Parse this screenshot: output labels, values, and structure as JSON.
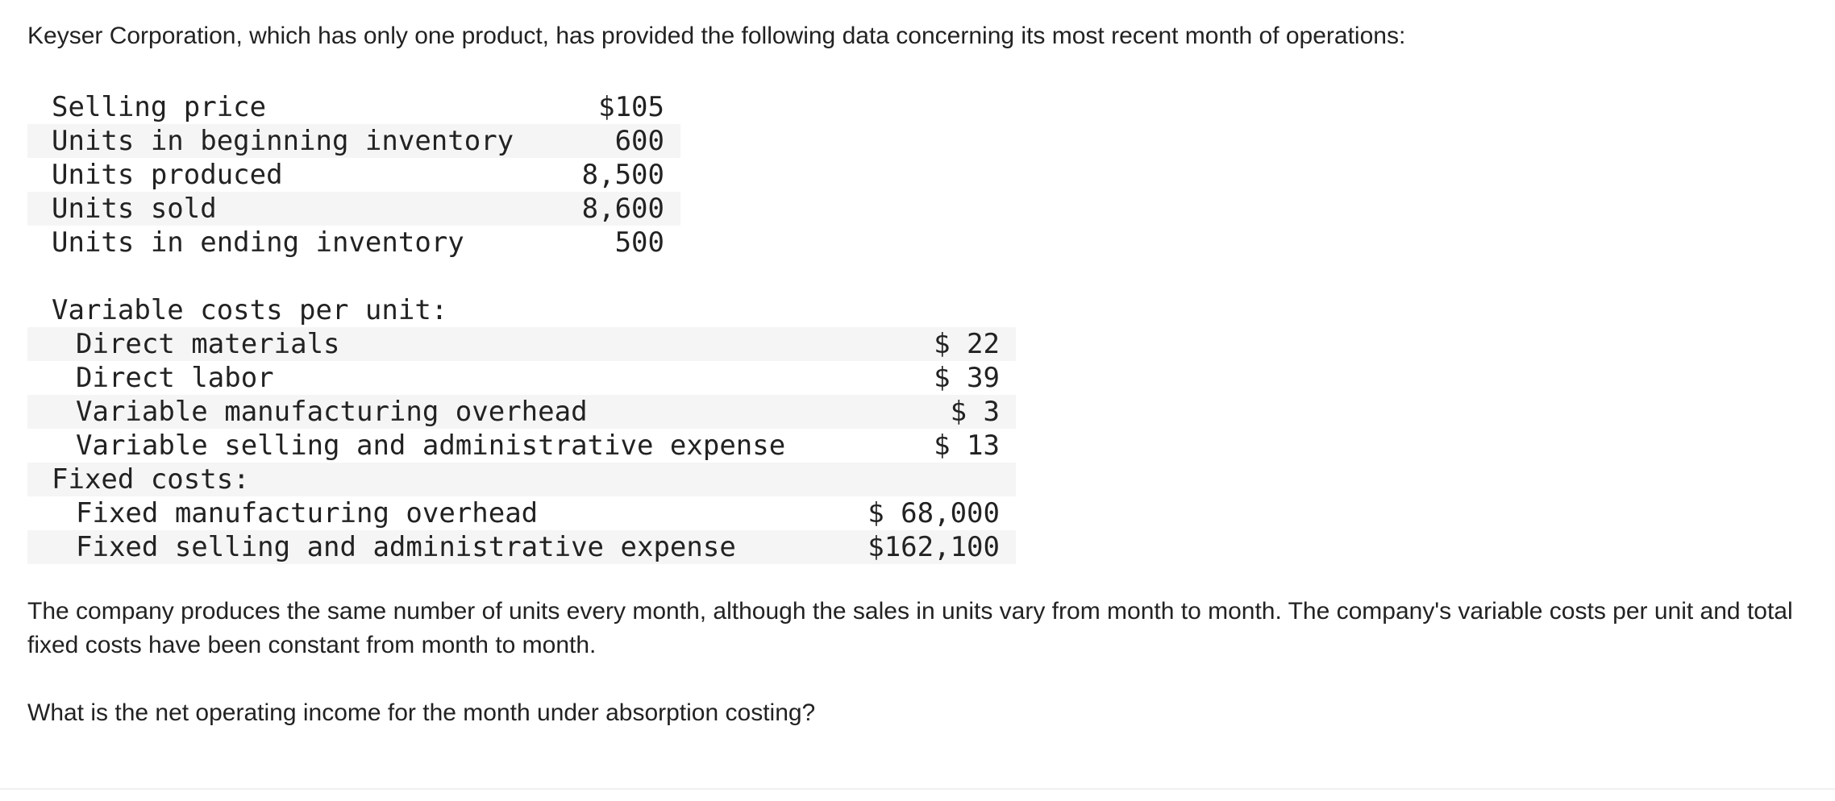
{
  "intro": "Keyser Corporation, which has only one product, has provided the following data concerning its most recent month of operations:",
  "table1": {
    "rows": [
      {
        "label": "Selling price",
        "value": "$105"
      },
      {
        "label": "Units in beginning inventory",
        "value": "600"
      },
      {
        "label": "Units produced",
        "value": "8,500"
      },
      {
        "label": "Units sold",
        "value": "8,600"
      },
      {
        "label": "Units in ending inventory",
        "value": "500"
      }
    ]
  },
  "table2": {
    "variable_header": "Variable costs per unit:",
    "variable_rows": [
      {
        "label": "Direct materials",
        "value": "$ 22"
      },
      {
        "label": "Direct labor",
        "value": "$ 39"
      },
      {
        "label": "Variable manufacturing overhead",
        "value": "$ 3"
      },
      {
        "label": "Variable selling and administrative expense",
        "value": "$ 13"
      }
    ],
    "fixed_header": "Fixed costs:",
    "fixed_rows": [
      {
        "label": "Fixed manufacturing overhead",
        "value": "$ 68,000"
      },
      {
        "label": "Fixed selling and administrative expense",
        "value": "$162,100"
      }
    ]
  },
  "paragraph": "The company produces the same number of units every month, although the sales in units vary from month to month. The company's variable costs per unit and total fixed costs have been constant from month to month.",
  "question": "What is the net operating income for the month under absorption costing?",
  "colors": {
    "text": "#222222",
    "row_shade": "#f5f5f5",
    "background": "#ffffff"
  }
}
